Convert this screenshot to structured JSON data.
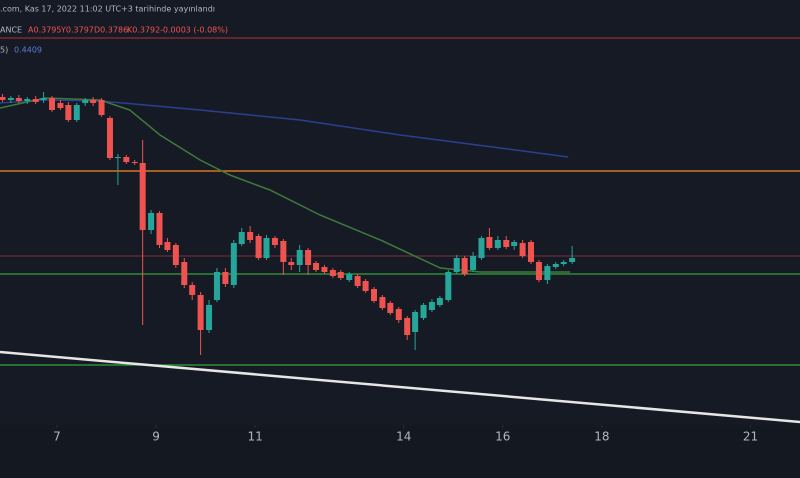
{
  "header": {
    "published": ".com, Kas 17, 2022 11:02 UTC+3 tarihinde yayınlandı",
    "symbol": "ANCE",
    "ohlc": [
      "A0.3795",
      "Y0.3797",
      "D0.3786",
      "K0.3792",
      "-0.0003 (-0.08%)"
    ],
    "ma_label": "5)",
    "ma_value": "0.4409"
  },
  "chart_data": {
    "type": "candlestick",
    "x": [
      5.9,
      6.07,
      6.23,
      6.4,
      6.57,
      6.73,
      6.9,
      7.07,
      7.23,
      7.4,
      7.57,
      7.73,
      7.9,
      8.07,
      8.23,
      8.4,
      8.57,
      8.73,
      8.9,
      9.07,
      9.23,
      9.4,
      9.57,
      9.73,
      9.9,
      10.07,
      10.23,
      10.4,
      10.57,
      10.73,
      10.9,
      11.07,
      11.23,
      11.4,
      11.57,
      11.73,
      11.9,
      12.07,
      12.23,
      12.4,
      12.57,
      12.73,
      12.9,
      13.07,
      13.23,
      13.4,
      13.57,
      13.73,
      13.9,
      14.07,
      14.23,
      14.4,
      14.57,
      14.73,
      14.9,
      15.07,
      15.23,
      15.4,
      15.57,
      15.73,
      15.9,
      16.07,
      16.23,
      16.4,
      16.57,
      16.73,
      16.9,
      17.07,
      17.23,
      17.4
    ],
    "open": [
      0.4782,
      0.4764,
      0.4776,
      0.4758,
      0.477,
      0.4764,
      0.4776,
      0.4746,
      0.4734,
      0.4644,
      0.4746,
      0.4764,
      0.4764,
      0.4656,
      0.4416,
      0.4422,
      0.4392,
      0.4386,
      0.3984,
      0.4086,
      0.3912,
      0.3894,
      0.3792,
      0.3654,
      0.3594,
      0.3384,
      0.3564,
      0.3732,
      0.3654,
      0.39,
      0.3972,
      0.3948,
      0.3816,
      0.3936,
      0.3918,
      0.3792,
      0.3774,
      0.3864,
      0.3786,
      0.3762,
      0.3744,
      0.3732,
      0.3684,
      0.3708,
      0.3678,
      0.363,
      0.3582,
      0.3546,
      0.351,
      0.3456,
      0.3372,
      0.3456,
      0.3504,
      0.3534,
      0.3564,
      0.3732,
      0.3816,
      0.3744,
      0.3816,
      0.3942,
      0.3876,
      0.3924,
      0.3888,
      0.3906,
      0.3912,
      0.3792,
      0.3684,
      0.3762,
      0.378,
      0.3792
    ],
    "close": [
      0.4764,
      0.4776,
      0.4758,
      0.477,
      0.4752,
      0.4776,
      0.4704,
      0.4716,
      0.4644,
      0.4734,
      0.4764,
      0.4746,
      0.4674,
      0.4416,
      0.4422,
      0.4392,
      0.4386,
      0.3984,
      0.4086,
      0.3894,
      0.3864,
      0.3774,
      0.3654,
      0.3594,
      0.3384,
      0.3534,
      0.3732,
      0.366,
      0.3906,
      0.3972,
      0.3924,
      0.3816,
      0.3936,
      0.3894,
      0.3792,
      0.3774,
      0.3864,
      0.3774,
      0.3744,
      0.3732,
      0.3708,
      0.3696,
      0.372,
      0.3648,
      0.3618,
      0.3558,
      0.3516,
      0.3486,
      0.3444,
      0.3354,
      0.3492,
      0.3534,
      0.3552,
      0.3576,
      0.3732,
      0.3816,
      0.372,
      0.3828,
      0.3936,
      0.3876,
      0.3924,
      0.3882,
      0.3912,
      0.3828,
      0.3792,
      0.3684,
      0.3768,
      0.378,
      0.3792,
      0.3816
    ],
    "high": [
      0.48,
      0.4788,
      0.4794,
      0.4782,
      0.4788,
      0.4812,
      0.4788,
      0.4764,
      0.4752,
      0.4746,
      0.4776,
      0.4782,
      0.4776,
      0.4668,
      0.444,
      0.4434,
      0.4404,
      0.4524,
      0.4104,
      0.4098,
      0.3936,
      0.3906,
      0.3816,
      0.3672,
      0.3612,
      0.3564,
      0.3756,
      0.3756,
      0.3924,
      0.3996,
      0.4008,
      0.396,
      0.3954,
      0.3948,
      0.393,
      0.3816,
      0.3894,
      0.3876,
      0.3798,
      0.3774,
      0.3756,
      0.3744,
      0.3732,
      0.372,
      0.369,
      0.3642,
      0.3594,
      0.3558,
      0.3522,
      0.3468,
      0.3504,
      0.3546,
      0.357,
      0.3588,
      0.3744,
      0.3834,
      0.3828,
      0.3852,
      0.3948,
      0.3996,
      0.3948,
      0.3948,
      0.3924,
      0.3924,
      0.3924,
      0.3804,
      0.378,
      0.3792,
      0.3804,
      0.3888
    ],
    "low": [
      0.4752,
      0.4746,
      0.4746,
      0.474,
      0.474,
      0.4746,
      0.4692,
      0.4704,
      0.4632,
      0.4632,
      0.4728,
      0.4728,
      0.4662,
      0.4404,
      0.4254,
      0.438,
      0.4374,
      0.3414,
      0.396,
      0.3876,
      0.3852,
      0.3756,
      0.3636,
      0.3564,
      0.3234,
      0.3366,
      0.3552,
      0.3642,
      0.3636,
      0.3888,
      0.3906,
      0.3804,
      0.3804,
      0.3876,
      0.3714,
      0.3744,
      0.3732,
      0.3714,
      0.3732,
      0.372,
      0.3696,
      0.3684,
      0.3672,
      0.3636,
      0.3606,
      0.3546,
      0.3504,
      0.3474,
      0.3426,
      0.3324,
      0.3264,
      0.3444,
      0.3492,
      0.3522,
      0.3552,
      0.372,
      0.3708,
      0.3732,
      0.3804,
      0.3864,
      0.3864,
      0.387,
      0.3864,
      0.3816,
      0.378,
      0.3672,
      0.366,
      0.375,
      0.3768,
      0.378
    ],
    "up_color": "#26a69a",
    "down_color": "#ef5350",
    "lines": [
      {
        "color": "#2a3f8f",
        "x": [
          5.85,
          6.76,
          7.87,
          9.89,
          11.91,
          13.93,
          15.95,
          17.32
        ],
        "values": [
          0.4746,
          0.4764,
          0.4758,
          0.4704,
          0.4644,
          0.4554,
          0.4476,
          0.4422
        ]
      },
      {
        "color": "#3f7a3a",
        "x": [
          5.85,
          6.76,
          7.87,
          8.47,
          9.08,
          9.89,
          10.49,
          11.3,
          12.31,
          13.53,
          14.74,
          15.55,
          16.76,
          17.36
        ],
        "values": [
          0.4716,
          0.4776,
          0.4764,
          0.4704,
          0.4554,
          0.4404,
          0.4314,
          0.4224,
          0.4074,
          0.3924,
          0.3756,
          0.3732,
          0.3732,
          0.3732
        ]
      },
      {
        "color": "#e6e6e6",
        "x": [
          5.85,
          22.0
        ],
        "values": [
          0.3252,
          0.2832
        ]
      }
    ],
    "hlines": [
      {
        "value": 0.5136,
        "color": "#7a2a30"
      },
      {
        "value": 0.4338,
        "color": "#d9741f"
      },
      {
        "value": 0.3828,
        "color": "#5a2a33"
      },
      {
        "value": 0.372,
        "color": "#2e8b3a"
      },
      {
        "value": 0.3174,
        "color": "#2e8b3a"
      }
    ],
    "xlim": [
      5.85,
      22.0
    ],
    "ylim": [
      0.2814,
      0.5364
    ],
    "xticks": [
      7,
      9,
      11,
      14,
      16,
      18,
      21
    ]
  }
}
